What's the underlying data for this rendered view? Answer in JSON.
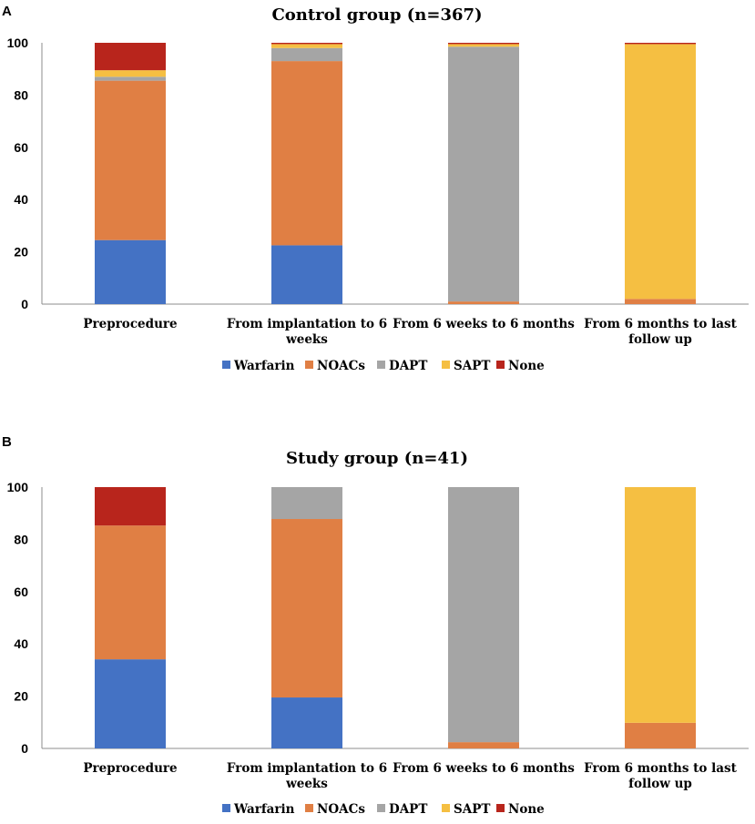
{
  "chart_data": [
    {
      "type": "bar",
      "stacked": true,
      "panel_letter": "A",
      "title": "Control group (n=367)",
      "categories": [
        [
          "Preprocedure"
        ],
        [
          "From implantation to 6",
          "weeks"
        ],
        [
          "From 6 weeks to 6 months"
        ],
        [
          "From 6 months to last",
          "follow up"
        ]
      ],
      "series": [
        {
          "name": "Warfarin",
          "color": "#4472C4",
          "values": [
            24.5,
            22.5,
            0,
            0
          ]
        },
        {
          "name": "NOACs",
          "color": "#E07F44",
          "values": [
            61.0,
            70.5,
            1.0,
            2.0
          ]
        },
        {
          "name": "DAPT",
          "color": "#A5A5A5",
          "values": [
            1.5,
            5.0,
            97.5,
            0
          ]
        },
        {
          "name": "SAPT",
          "color": "#F5BF42",
          "values": [
            2.5,
            1.5,
            1.0,
            97.5
          ]
        },
        {
          "name": "None",
          "color": "#B8251C",
          "values": [
            10.5,
            0.5,
            0.5,
            0.5
          ]
        }
      ],
      "ylim": [
        0,
        100
      ],
      "yticks": [
        "0",
        "20",
        "40",
        "60",
        "80",
        "100"
      ],
      "legend": "bottom",
      "xlabel": "",
      "ylabel": ""
    },
    {
      "type": "bar",
      "stacked": true,
      "panel_letter": "B",
      "title": "Study group (n=41)",
      "categories": [
        [
          "Preprocedure"
        ],
        [
          "From implantation to 6",
          "weeks"
        ],
        [
          "From 6 weeks to 6 months"
        ],
        [
          "From 6 months to last",
          "follow up"
        ]
      ],
      "series": [
        {
          "name": "Warfarin",
          "color": "#4472C4",
          "values": [
            34.1,
            19.5,
            0,
            0
          ]
        },
        {
          "name": "NOACs",
          "color": "#E07F44",
          "values": [
            51.2,
            68.3,
            2.4,
            9.8
          ]
        },
        {
          "name": "DAPT",
          "color": "#A5A5A5",
          "values": [
            0,
            12.2,
            97.6,
            0
          ]
        },
        {
          "name": "SAPT",
          "color": "#F5BF42",
          "values": [
            0,
            0,
            0,
            90.2
          ]
        },
        {
          "name": "None",
          "color": "#B8251C",
          "values": [
            14.7,
            0,
            0,
            0
          ]
        }
      ],
      "ylim": [
        0,
        100
      ],
      "yticks": [
        "0",
        "20",
        "40",
        "60",
        "80",
        "100"
      ],
      "legend": "bottom",
      "xlabel": "",
      "ylabel": ""
    }
  ]
}
